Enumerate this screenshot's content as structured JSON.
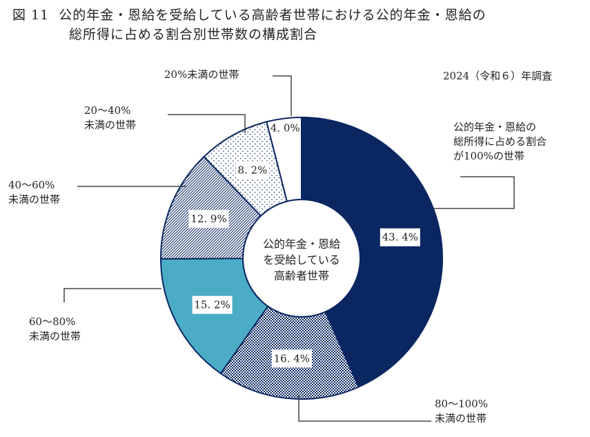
{
  "title": {
    "figure_no": "図 11",
    "line1": "公的年金・恩給を受給している高齢者世帯における公的年金・恩給の",
    "line2": "総所得に占める割合別世帯数の構成割合"
  },
  "note": "2024（令和６）年調査",
  "chart_data": {
    "type": "pie",
    "subtype": "donut",
    "title": "公的年金・恩給を受給している高齢者世帯における公的年金・恩給の総所得に占める割合別世帯数の構成割合",
    "center_label": [
      "公的年金・恩給",
      "を受給している",
      "高齢者世帯"
    ],
    "slices": [
      {
        "name": "公的年金・恩給の総所得に占める割合が100%の世帯",
        "legend": [
          "公的年金・恩給の",
          "総所得に占める割合",
          "が100%の世帯"
        ],
        "value": 43.4,
        "label": "43.4%",
        "color": "#0b2762",
        "pattern": "solid"
      },
      {
        "name": "80～100%未満の世帯",
        "legend": [
          "80～100%",
          "未満の世帯"
        ],
        "value": 16.4,
        "label": "16.4%",
        "color": "#0b2762",
        "pattern": "checker"
      },
      {
        "name": "60～80%未満の世帯",
        "legend": [
          "60～80%",
          "未満の世帯"
        ],
        "value": 15.2,
        "label": "15.2%",
        "color": "#4bacc6",
        "pattern": "solid"
      },
      {
        "name": "40～60%未満の世帯",
        "legend": [
          "40～60%",
          "未満の世帯"
        ],
        "value": 12.9,
        "label": "12.9%",
        "color": "#0b2762",
        "pattern": "hatch"
      },
      {
        "name": "20～40%未満の世帯",
        "legend": [
          "20～40%",
          "未満の世帯"
        ],
        "value": 8.2,
        "label": "8.2%",
        "color": "#0b2762",
        "pattern": "dots"
      },
      {
        "name": "20%未満の世帯",
        "legend": [
          "20%未満の世帯"
        ],
        "value": 4.0,
        "label": "4.0%",
        "color": "#ffffff",
        "pattern": "solid"
      }
    ]
  }
}
